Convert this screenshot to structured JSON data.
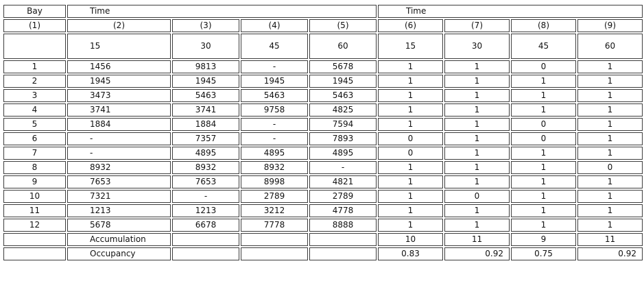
{
  "header": {
    "bay": "Bay",
    "time_left": "Time",
    "time_right": "Time",
    "col_numbers": [
      "(1)",
      "(2)",
      "(3)",
      "(4)",
      "(5)",
      "(6)",
      "(7)",
      "(8)",
      "(9)"
    ],
    "minutes": [
      "15",
      "30",
      "45",
      "60",
      "15",
      "30",
      "45",
      "60"
    ]
  },
  "rows": [
    [
      "1",
      "1456",
      "9813",
      "-",
      "5678",
      "1",
      "1",
      "0",
      "1"
    ],
    [
      "2",
      "1945",
      "1945",
      "1945",
      "1945",
      "1",
      "1",
      "1",
      "1"
    ],
    [
      "3",
      "3473",
      "5463",
      "5463",
      "5463",
      "1",
      "1",
      "1",
      "1"
    ],
    [
      "4",
      "3741",
      "3741",
      "9758",
      "4825",
      "1",
      "1",
      "1",
      "1"
    ],
    [
      "5",
      "1884",
      "1884",
      "-",
      "7594",
      "1",
      "1",
      "0",
      "1"
    ],
    [
      "6",
      "-",
      "7357",
      "-",
      "7893",
      "0",
      "1",
      "0",
      "1"
    ],
    [
      "7",
      "-",
      "4895",
      "4895",
      "4895",
      "0",
      "1",
      "1",
      "1"
    ],
    [
      "8",
      "8932",
      "8932",
      "8932",
      "-",
      "1",
      "1",
      "1",
      "0"
    ],
    [
      "9",
      "7653",
      "7653",
      "8998",
      "4821",
      "1",
      "1",
      "1",
      "1"
    ],
    [
      "10",
      "7321",
      "-",
      "2789",
      "2789",
      "1",
      "0",
      "1",
      "1"
    ],
    [
      "11",
      "1213",
      "1213",
      "3212",
      "4778",
      "1",
      "1",
      "1",
      "1"
    ],
    [
      "12",
      "5678",
      "6678",
      "7778",
      "8888",
      "1",
      "1",
      "1",
      "1"
    ]
  ],
  "accumulation": {
    "label": "Accumulation",
    "values": [
      "10",
      "11",
      "9",
      "11"
    ]
  },
  "occupancy": {
    "label": "Occupancy",
    "values": [
      "0.83",
      "0.92",
      "0.75",
      "0.92"
    ]
  }
}
